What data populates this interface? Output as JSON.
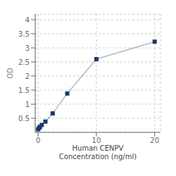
{
  "chart_data": {
    "type": "line",
    "x": [
      0.0,
      0.156,
      0.313,
      0.625,
      1.25,
      2.5,
      5.0,
      10.0,
      20.0
    ],
    "values": [
      0.108,
      0.154,
      0.196,
      0.263,
      0.382,
      0.672,
      1.38,
      2.6,
      3.22
    ],
    "color": "#1a3a6b",
    "marker": "square",
    "xlabel": "Human CENPV\nConcentration (ng/ml)",
    "ylabel": "OD",
    "xlim": [
      -0.5,
      21
    ],
    "ylim": [
      0,
      4.2
    ],
    "xticks": [
      0,
      10,
      20
    ],
    "yticks": [
      0.5,
      1.0,
      1.5,
      2.0,
      2.5,
      3.0,
      3.5,
      4.0
    ],
    "grid": true
  }
}
